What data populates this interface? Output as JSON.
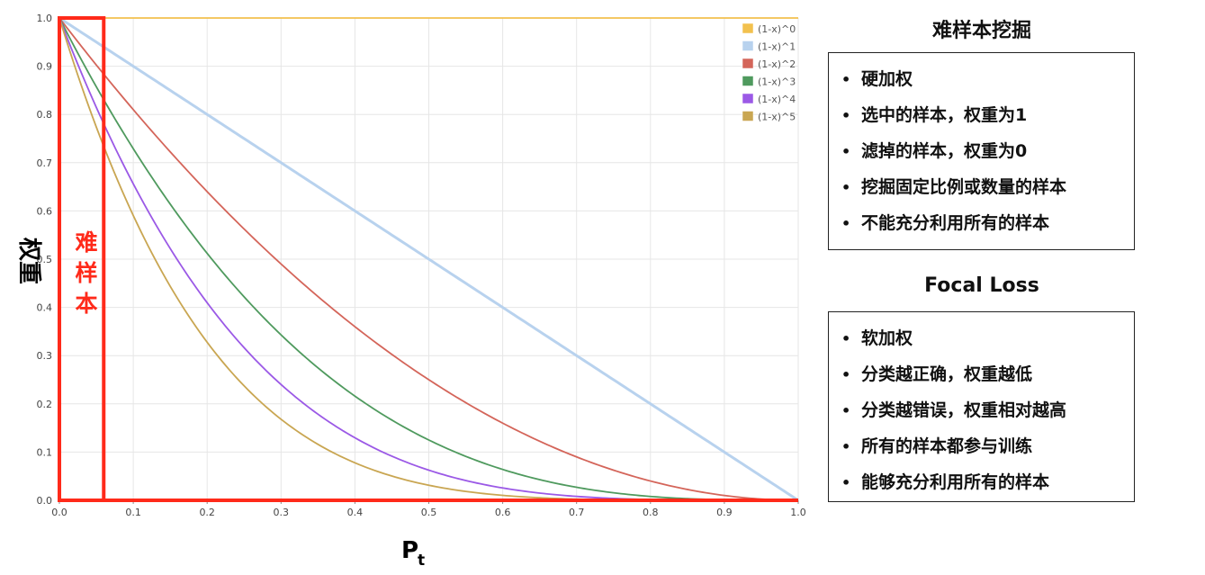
{
  "chart_data": {
    "type": "line",
    "xlabel": "P",
    "xlabel_sub": "t",
    "ylabel": "权重",
    "xlim": [
      0,
      1
    ],
    "ylim": [
      0,
      1
    ],
    "x_ticks": [
      "0.0",
      "0.1",
      "0.2",
      "0.3",
      "0.4",
      "0.5",
      "0.6",
      "0.7",
      "0.8",
      "0.9",
      "1.0"
    ],
    "y_ticks": [
      "0.0",
      "0.1",
      "0.2",
      "0.3",
      "0.4",
      "0.5",
      "0.6",
      "0.7",
      "0.8",
      "0.9",
      "1.0"
    ],
    "grid": true,
    "legend_position": "top-right",
    "series": [
      {
        "name": "(1-x)^0",
        "exponent": 0,
        "color": "#f2c14e"
      },
      {
        "name": "(1-x)^1",
        "exponent": 1,
        "color": "#b8d2ee"
      },
      {
        "name": "(1-x)^2",
        "exponent": 2,
        "color": "#d4655a"
      },
      {
        "name": "(1-x)^3",
        "exponent": 3,
        "color": "#4f9a5e"
      },
      {
        "name": "(1-x)^4",
        "exponent": 4,
        "color": "#9b59e6"
      },
      {
        "name": "(1-x)^5",
        "exponent": 5,
        "color": "#c9a652"
      }
    ],
    "highlight": {
      "label": "难样本",
      "x_range": [
        0,
        0.06
      ],
      "color": "#ff2a1a"
    }
  },
  "panels": {
    "ohem": {
      "title": "难样本挖掘",
      "items": [
        "硬加权",
        "选中的样本，权重为1",
        "滤掉的样本，权重为0",
        "挖掘固定比例或数量的样本",
        "不能充分利用所有的样本"
      ]
    },
    "focal": {
      "title": "Focal Loss",
      "items": [
        "软加权",
        "分类越正确，权重越低",
        "分类越错误，权重相对越高",
        "所有的样本都参与训练",
        "能够充分利用所有的样本"
      ]
    },
    "bullet": "•"
  }
}
